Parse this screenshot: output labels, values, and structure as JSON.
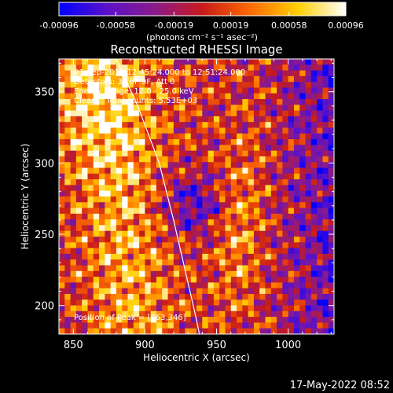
{
  "chart_data": {
    "type": "heatmap",
    "title": "Reconstructed RHESSI Image",
    "xlabel": "Heliocentric X (arcsec)",
    "ylabel": "Heliocentric Y (arcsec)",
    "xlim": [
      840,
      1032
    ],
    "ylim": [
      180,
      373
    ],
    "xticks": [
      850,
      900,
      950,
      1000
    ],
    "yticks": [
      200,
      250,
      300,
      350
    ],
    "colorbar": {
      "ticks": [
        "-0.00096",
        "-0.00058",
        "-0.00019",
        "0.00019",
        "0.00058",
        "0.00096"
      ],
      "range": [
        -0.00096,
        0.00096
      ],
      "unit_label": "(photons cm⁻² s⁻¹ asec⁻²)",
      "colors": [
        "#0000ff",
        "#5a12c8",
        "#8a1a8c",
        "#c81a1a",
        "#ff6a00",
        "#ffd000",
        "#ffffff"
      ]
    },
    "annotations": [
      "01-Sep-2014 12:45:24.000 to 12:51:24.000",
      "Detectors: 3F 6F 9F, Att 0",
      "Energy Range: 12.0 - 25.0 keV",
      "Clean    Total counts: 5.53E+03"
    ],
    "peak_label": "Position of Peak = [863,346]",
    "peak_position": [
      863,
      346
    ],
    "limb_points": [
      [
        880,
        373
      ],
      [
        895,
        340
      ],
      [
        910,
        300
      ],
      [
        920,
        260
      ],
      [
        928,
        225
      ],
      [
        936,
        190
      ],
      [
        938,
        180
      ]
    ]
  },
  "timestamp": "17-May-2022 08:52"
}
